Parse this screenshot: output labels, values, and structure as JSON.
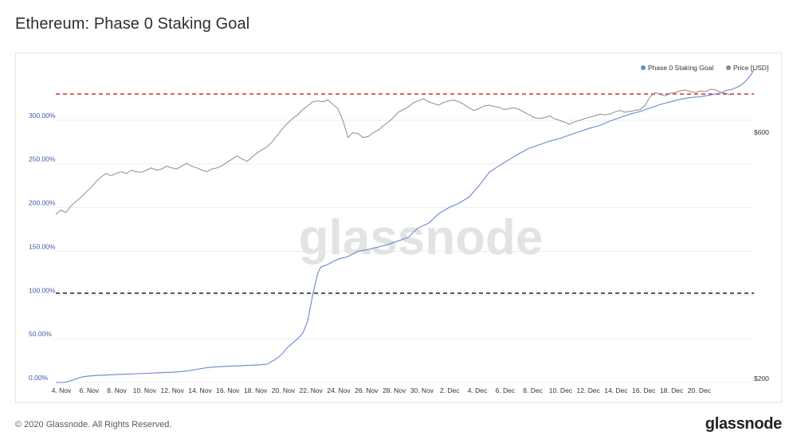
{
  "page": {
    "title": "Ethereum: Phase 0 Staking Goal",
    "copyright": "© 2020 Glassnode. All Rights Reserved.",
    "logo": "glassnode",
    "watermark": "glassnode"
  },
  "chart_data": {
    "type": "line",
    "title": "Ethereum: Phase 0 Staking Goal",
    "legend": {
      "placement": "top-right",
      "entries": [
        {
          "label": "Phase 0 Staking Goal",
          "color": "#6b86d4"
        },
        {
          "label": "Price [USD]",
          "color": "#8c8c8c"
        }
      ]
    },
    "x_tick_labels": [
      "4. Nov",
      "6. Nov",
      "8. Nov",
      "10. Nov",
      "12. Nov",
      "14. Nov",
      "16. Nov",
      "18. Nov",
      "20. Nov",
      "22. Nov",
      "24. Nov",
      "26. Nov",
      "28. Nov",
      "30. Nov",
      "2. Dec",
      "4. Dec",
      "6. Dec",
      "8. Dec",
      "10. Dec",
      "12. Dec",
      "14. Dec",
      "16. Dec",
      "18. Dec",
      "20. Dec"
    ],
    "x_range_days": [
      0,
      48
    ],
    "y_left": {
      "tick_labels": [
        "0.00%",
        "50.00%",
        "100.00%",
        "150.00%",
        "200.00%",
        "250.00%",
        "300.00%"
      ],
      "range_percent": [
        0,
        310
      ],
      "color": "#3d5aa8"
    },
    "y_right": {
      "tick_labels": [
        "$200",
        "$600"
      ],
      "range_usd": [
        200,
        640
      ],
      "scale": "log"
    },
    "grid": true,
    "reference_lines": [
      {
        "value_percent": 324,
        "color": "#d62d2d",
        "style": "dashed"
      },
      {
        "value_percent": 100,
        "color": "#222222",
        "style": "dashed"
      }
    ],
    "series": [
      {
        "name": "Phase 0 Staking Goal",
        "unit": "%",
        "color": "#6b86d4",
        "points": [
          [
            0,
            0
          ],
          [
            0.8,
            0
          ],
          [
            1.5,
            2
          ],
          [
            2,
            4
          ],
          [
            2.5,
            6
          ],
          [
            3,
            7
          ],
          [
            4,
            8
          ],
          [
            5,
            8.5
          ],
          [
            6,
            9
          ],
          [
            7,
            9.5
          ],
          [
            8,
            10
          ],
          [
            9,
            10.5
          ],
          [
            10,
            11
          ],
          [
            11,
            11.5
          ],
          [
            12,
            12
          ],
          [
            13,
            13
          ],
          [
            14,
            15
          ],
          [
            15,
            17
          ],
          [
            16,
            18
          ],
          [
            17,
            18.5
          ],
          [
            18,
            19
          ],
          [
            19,
            19.5
          ],
          [
            20,
            20
          ],
          [
            21,
            21
          ],
          [
            22,
            28
          ],
          [
            22.5,
            33
          ],
          [
            23,
            40
          ],
          [
            23.5,
            45
          ],
          [
            24,
            50
          ],
          [
            24.5,
            56
          ],
          [
            25,
            70
          ],
          [
            25.5,
            100
          ],
          [
            26,
            125
          ],
          [
            26.3,
            132
          ],
          [
            27,
            135
          ],
          [
            28,
            141
          ],
          [
            29,
            144
          ],
          [
            30,
            150
          ],
          [
            31,
            152
          ],
          [
            32,
            155
          ],
          [
            33,
            158
          ],
          [
            34,
            162
          ],
          [
            35,
            166
          ],
          [
            35.5,
            172
          ],
          [
            36,
            177
          ],
          [
            37,
            182
          ],
          [
            38,
            193
          ],
          [
            39,
            200
          ],
          [
            40,
            205
          ],
          [
            41,
            212
          ],
          [
            42,
            225
          ],
          [
            43,
            240
          ],
          [
            44,
            248
          ],
          [
            45,
            255
          ],
          [
            46,
            262
          ],
          [
            47,
            268
          ],
          [
            48,
            272
          ],
          [
            49,
            276
          ],
          [
            50,
            279
          ],
          [
            51,
            283
          ],
          [
            52,
            287
          ],
          [
            53,
            291
          ],
          [
            54,
            294
          ],
          [
            55,
            299
          ],
          [
            56,
            303
          ],
          [
            57,
            307
          ],
          [
            58,
            310
          ],
          [
            59,
            314
          ],
          [
            60,
            318
          ],
          [
            61,
            321
          ],
          [
            62,
            324
          ],
          [
            63,
            326
          ],
          [
            64,
            327
          ],
          [
            65,
            329
          ],
          [
            66,
            331
          ],
          [
            66.5,
            334
          ],
          [
            67,
            335
          ],
          [
            67.5,
            337
          ],
          [
            68,
            340
          ],
          [
            68.5,
            345
          ],
          [
            69,
            352
          ],
          [
            69.3,
            358
          ]
        ]
      },
      {
        "name": "Price [USD]",
        "unit": "USD",
        "color": "#8c8c8c",
        "points": [
          [
            0,
            385
          ],
          [
            0.5,
            392
          ],
          [
            1,
            388
          ],
          [
            1.5,
            398
          ],
          [
            2,
            405
          ],
          [
            2.5,
            412
          ],
          [
            3,
            420
          ],
          [
            3.5,
            428
          ],
          [
            4,
            438
          ],
          [
            4.5,
            446
          ],
          [
            5,
            452
          ],
          [
            5.5,
            448
          ],
          [
            6,
            452
          ],
          [
            6.5,
            455
          ],
          [
            7,
            452
          ],
          [
            7.5,
            458
          ],
          [
            8,
            455
          ],
          [
            8.5,
            454
          ],
          [
            9,
            458
          ],
          [
            9.5,
            462
          ],
          [
            10,
            458
          ],
          [
            10.5,
            460
          ],
          [
            11,
            465
          ],
          [
            11.5,
            462
          ],
          [
            12,
            460
          ],
          [
            12.5,
            465
          ],
          [
            13,
            470
          ],
          [
            13.5,
            465
          ],
          [
            14,
            462
          ],
          [
            14.5,
            458
          ],
          [
            15,
            455
          ],
          [
            15.5,
            460
          ],
          [
            16,
            462
          ],
          [
            16.5,
            466
          ],
          [
            17,
            472
          ],
          [
            17.5,
            478
          ],
          [
            18,
            484
          ],
          [
            18.5,
            478
          ],
          [
            19,
            474
          ],
          [
            19.5,
            482
          ],
          [
            20,
            490
          ],
          [
            20.5,
            496
          ],
          [
            21,
            502
          ],
          [
            21.5,
            512
          ],
          [
            22,
            525
          ],
          [
            22.5,
            538
          ],
          [
            23,
            550
          ],
          [
            23.5,
            560
          ],
          [
            24,
            568
          ],
          [
            24.5,
            580
          ],
          [
            25,
            588
          ],
          [
            25.5,
            598
          ],
          [
            26,
            600
          ],
          [
            26.5,
            598
          ],
          [
            27,
            602
          ],
          [
            27.5,
            592
          ],
          [
            28,
            582
          ],
          [
            28.5,
            556
          ],
          [
            29,
            520
          ],
          [
            29.5,
            530
          ],
          [
            30,
            528
          ],
          [
            30.5,
            520
          ],
          [
            31,
            522
          ],
          [
            31.5,
            530
          ],
          [
            32,
            535
          ],
          [
            32.5,
            544
          ],
          [
            33,
            552
          ],
          [
            33.5,
            562
          ],
          [
            34,
            574
          ],
          [
            34.5,
            580
          ],
          [
            35,
            586
          ],
          [
            35.5,
            596
          ],
          [
            36,
            600
          ],
          [
            36.5,
            605
          ],
          [
            37,
            598
          ],
          [
            37.5,
            594
          ],
          [
            38,
            590
          ],
          [
            38.5,
            596
          ],
          [
            39,
            600
          ],
          [
            39.5,
            602
          ],
          [
            40,
            598
          ],
          [
            40.5,
            592
          ],
          [
            41,
            584
          ],
          [
            41.5,
            578
          ],
          [
            42,
            582
          ],
          [
            42.5,
            588
          ],
          [
            43,
            590
          ],
          [
            43.5,
            587
          ],
          [
            44,
            585
          ],
          [
            44.5,
            580
          ],
          [
            45,
            582
          ],
          [
            45.5,
            584
          ],
          [
            46,
            580
          ],
          [
            46.5,
            574
          ],
          [
            47,
            568
          ],
          [
            47.5,
            562
          ],
          [
            48,
            560
          ],
          [
            48.5,
            562
          ],
          [
            49,
            566
          ],
          [
            49.5,
            560
          ],
          [
            50,
            556
          ],
          [
            50.5,
            552
          ],
          [
            51,
            548
          ],
          [
            51.5,
            553
          ],
          [
            52,
            556
          ],
          [
            52.5,
            560
          ],
          [
            53,
            563
          ],
          [
            53.5,
            566
          ],
          [
            54,
            570
          ],
          [
            54.5,
            568
          ],
          [
            55,
            570
          ],
          [
            55.5,
            575
          ],
          [
            56,
            578
          ],
          [
            56.5,
            574
          ],
          [
            57,
            576
          ],
          [
            57.5,
            578
          ],
          [
            58,
            580
          ],
          [
            58.5,
            590
          ],
          [
            59,
            610
          ],
          [
            59.5,
            620
          ],
          [
            60,
            615
          ],
          [
            60.5,
            612
          ],
          [
            61,
            618
          ],
          [
            61.5,
            620
          ],
          [
            62,
            624
          ],
          [
            62.5,
            626
          ],
          [
            63,
            622
          ],
          [
            63.5,
            620
          ],
          [
            64,
            624
          ],
          [
            64.5,
            622
          ],
          [
            65,
            628
          ],
          [
            65.5,
            626
          ],
          [
            66,
            620
          ],
          [
            66.5,
            618
          ],
          [
            67,
            614
          ]
        ]
      }
    ]
  }
}
